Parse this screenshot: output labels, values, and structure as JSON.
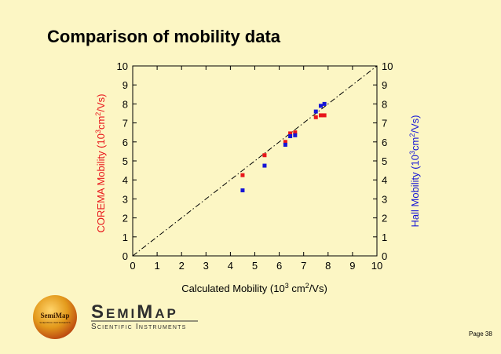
{
  "slide": {
    "title": "Comparison of mobility data",
    "page_label": "Page 38"
  },
  "logo": {
    "badge_text": "SemiMap",
    "badge_subtext": "SCIENTIFIC INSTRUMENTS",
    "wordmark": "SemiMap",
    "tagline": "Scientific Instruments",
    "colors": {
      "badge": "#e39a1c",
      "badge_dark": "#b8400f",
      "wordmark": "#2e2e2e"
    }
  },
  "chart_data": {
    "type": "scatter",
    "xlabel": "Calculated Mobility (10³ cm²/Vs)",
    "ylabel_left": "COREMA Mobility (10³cm²/Vs)",
    "ylabel_right": "Hall Mobility (10³cm²/Vs)",
    "xlim": [
      0,
      10
    ],
    "ylim": [
      0,
      10
    ],
    "xticks": [
      "0",
      "1",
      "2",
      "3",
      "4",
      "5",
      "6",
      "7",
      "8",
      "9",
      "10"
    ],
    "yticks": [
      "0",
      "1",
      "2",
      "3",
      "4",
      "5",
      "6",
      "7",
      "8",
      "9",
      "10"
    ],
    "reference_line": {
      "style": "dash-dot",
      "from": [
        0,
        0
      ],
      "to": [
        10,
        10
      ]
    },
    "series": [
      {
        "axis": "left",
        "color": "#e8161b",
        "marker": "square",
        "points": [
          [
            4.5,
            4.25
          ],
          [
            5.4,
            5.3
          ],
          [
            6.25,
            6.0
          ],
          [
            6.45,
            6.45
          ],
          [
            6.65,
            6.5
          ],
          [
            7.5,
            7.3
          ],
          [
            7.7,
            7.4
          ],
          [
            7.85,
            7.4
          ]
        ]
      },
      {
        "axis": "right",
        "color": "#1515d6",
        "marker": "square",
        "points": [
          [
            4.5,
            3.45
          ],
          [
            5.4,
            4.75
          ],
          [
            6.25,
            5.85
          ],
          [
            6.45,
            6.3
          ],
          [
            6.65,
            6.35
          ],
          [
            7.5,
            7.6
          ],
          [
            7.7,
            7.9
          ],
          [
            7.85,
            8.0
          ]
        ]
      }
    ]
  }
}
